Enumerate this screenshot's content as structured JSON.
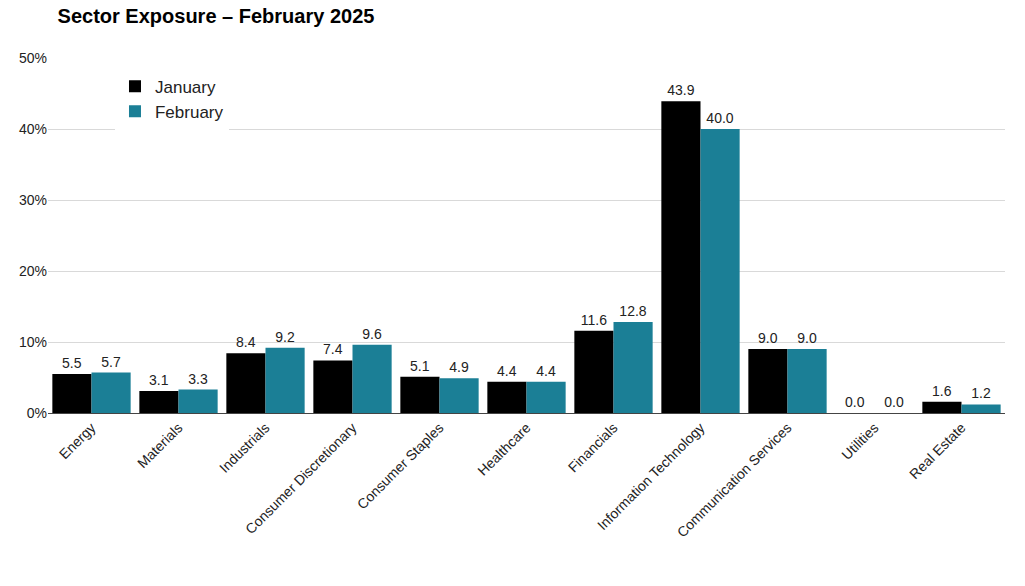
{
  "chart_data": {
    "type": "bar",
    "title": "Sector Exposure – February 2025",
    "categories": [
      "Energy",
      "Materials",
      "Industrials",
      "Consumer Discretionary",
      "Consumer Staples",
      "Healthcare",
      "Financials",
      "Information Technology",
      "Communication Services",
      "Utilities",
      "Real Estate"
    ],
    "series": [
      {
        "name": "January",
        "color": "#000000",
        "values": [
          5.5,
          3.1,
          8.4,
          7.4,
          5.1,
          4.4,
          11.6,
          43.9,
          9.0,
          0.0,
          1.6
        ],
        "value_labels": [
          "5.5",
          "3.1",
          "8.4",
          "7.4",
          "5.1",
          "4.4",
          "11.6",
          "43.9",
          "9.0",
          "0.0",
          "1.6"
        ]
      },
      {
        "name": "February",
        "color": "#1b7f96",
        "values": [
          5.7,
          3.3,
          9.2,
          9.6,
          4.9,
          4.4,
          12.8,
          40.0,
          9.0,
          0.0,
          1.2
        ],
        "value_labels": [
          "5.7",
          "3.3",
          "9.2",
          "9.6",
          "4.9",
          "4.4",
          "12.8",
          "40.0",
          "9.0",
          "0.0",
          "1.2"
        ]
      }
    ],
    "ylim": [
      0,
      50
    ],
    "yticks": [
      {
        "value": 0,
        "label": "0%"
      },
      {
        "value": 10,
        "label": "10%"
      },
      {
        "value": 20,
        "label": "20%"
      },
      {
        "value": 30,
        "label": "30%"
      },
      {
        "value": 40,
        "label": "40%"
      },
      {
        "value": 50,
        "label": "50%"
      }
    ],
    "grid": true,
    "legend": "upper left",
    "data_labels": true
  }
}
